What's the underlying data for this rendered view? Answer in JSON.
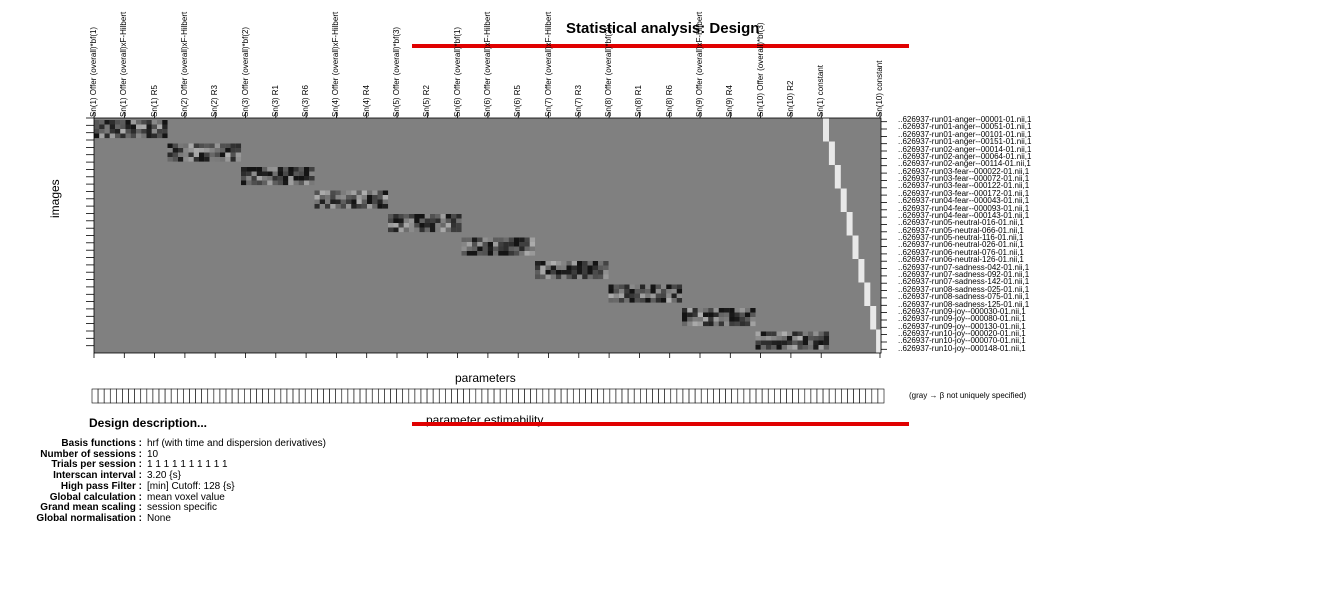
{
  "window": {
    "title": "Statistical analysis: Design"
  },
  "design_matrix": {
    "y_axis_label": "images",
    "x_axis_label": "parameters",
    "column_labels": [
      "Sn(1) Offer (overall)*bf(1)",
      "Sn(1) Offer (overall)xF-Hilbert",
      "Sn(1) R5",
      "Sn(2) Offer (overall)xF-Hilbert",
      "Sn(2) R3",
      "Sn(3) Offer (overall)*bf(2)",
      "Sn(3) R1",
      "Sn(3) R6",
      "Sn(4) Offer (overall)xF-Hilbert",
      "Sn(4) R4",
      "Sn(5) Offer (overall)*bf(3)",
      "Sn(5) R2",
      "Sn(6) Offer (overall)*bf(1)",
      "Sn(6) Offer (overall)xF-Hilbert",
      "Sn(6) R5",
      "Sn(7) Offer (overall)xF-Hilbert",
      "Sn(7) R3",
      "Sn(8) Offer (overall)*bf(2)",
      "Sn(8) R1",
      "Sn(8) R6",
      "Sn(9) Offer (overall)xF-Hilbert",
      "Sn(9) R4",
      "Sn(10) Offer (overall)*bf(3)",
      "Sn(10) R2",
      "Sn(1) constant",
      "Sn(10) constant"
    ],
    "row_labels": [
      "..626937-run01-anger--00001-01.nii,1",
      "..626937-run01-anger--00051-01.nii,1",
      "..626937-run01-anger--00101-01.nii,1",
      "..626937-run01-anger--00151-01.nii,1",
      "..626937-run02-anger--00014-01.nii,1",
      "..626937-run02-anger--00064-01.nii,1",
      "..626937-run02-anger--00114-01.nii,1",
      "..626937-run03-fear--000022-01.nii,1",
      "..626937-run03-fear--000072-01.nii,1",
      "..626937-run03-fear--000122-01.nii,1",
      "..626937-run03-fear--000172-01.nii,1",
      "..626937-run04-fear--000043-01.nii,1",
      "..626937-run04-fear--000093-01.nii,1",
      "..626937-run04-fear--000143-01.nii,1",
      "..626937-run05-neutral-016-01.nii,1",
      "..626937-run05-neutral-066-01.nii,1",
      "..626937-run05-neutral-116-01.nii,1",
      "..626937-run06-neutral-026-01.nii,1",
      "..626937-run06-neutral-076-01.nii,1",
      "..626937-run06-neutral-126-01.nii,1",
      "..626937-run07-sadness-042-01.nii,1",
      "..626937-run07-sadness-092-01.nii,1",
      "..626937-run07-sadness-142-01.nii,1",
      "..626937-run08-sadness-025-01.nii,1",
      "..626937-run08-sadness-075-01.nii,1",
      "..626937-run08-sadness-125-01.nii,1",
      "..626937-run09-joy--000030-01.nii,1",
      "..626937-run09-joy--000080-01.nii,1",
      "..626937-run09-joy--000130-01.nii,1",
      "..626937-run10-joy--000020-01.nii,1",
      "..626937-run10-joy--000070-01.nii,1",
      "..626937-run10-joy--000148-01.nii,1"
    ],
    "sessions": 10,
    "background_color": "#808080",
    "constant_color": "#e8e8e8"
  },
  "estimability": {
    "title": "parameter estimability",
    "note": "(gray → β not uniquely specified)",
    "cell_count": 130
  },
  "description": {
    "title": "Design description...",
    "rows": [
      {
        "key": "Basis functions :",
        "value": "hrf (with time and dispersion derivatives)"
      },
      {
        "key": "Number of sessions :",
        "value": "10"
      },
      {
        "key": "Trials per session :",
        "value": "1  1  1  1  1  1  1  1  1  1"
      },
      {
        "key": "Interscan interval :",
        "value": "3.20 {s}"
      },
      {
        "key": "High pass Filter :",
        "value": "[min] Cutoff: 128 {s}"
      },
      {
        "key": "Global calculation :",
        "value": "mean voxel value"
      },
      {
        "key": "Grand mean scaling :",
        "value": "session specific"
      },
      {
        "key": "Global normalisation :",
        "value": "None"
      }
    ]
  },
  "colors": {
    "accent_red": "#e00000"
  }
}
